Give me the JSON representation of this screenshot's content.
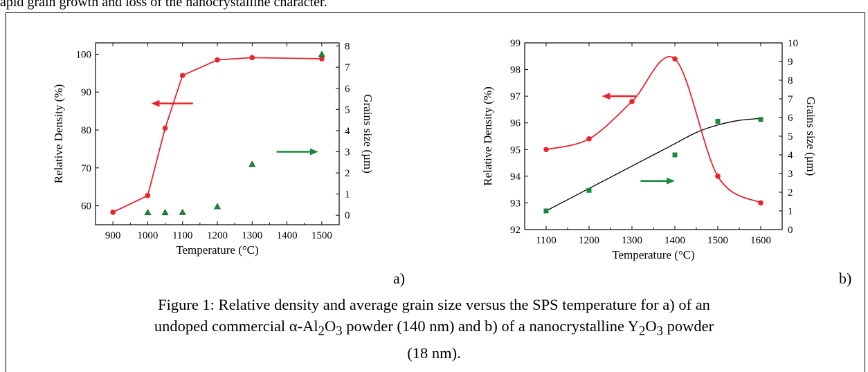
{
  "top_text": "apid grain growth and loss of the nanocrystalline character.",
  "caption": {
    "line1": "Figure 1:  Relative density and average grain size versus the SPS temperature for a) of an",
    "line2_pre": "undoped commercial α-Al",
    "sub2": "2",
    "mid": "O",
    "sub3": "3",
    "line2_mid": " powder (140 nm) and  b) of a nanocrystalline Y",
    "sub2b": "2",
    "midb": "O",
    "sub3b": "3",
    "line2_post": " powder",
    "line3": "(18 nm)."
  },
  "chart_data": [
    {
      "panel_label": "a)",
      "type": "scatter",
      "xlabel": "Temperature (°C)",
      "ylabel": "Relative Density (%)",
      "y2label": "Grains size (µm)",
      "xlim": [
        850,
        1550
      ],
      "ylim": [
        55,
        103
      ],
      "y2lim": [
        -0.45,
        8.15
      ],
      "xticks": [
        900,
        1000,
        1100,
        1200,
        1300,
        1400,
        1500
      ],
      "yticks": [
        60,
        70,
        80,
        90,
        100
      ],
      "y2ticks": [
        0,
        1,
        2,
        3,
        4,
        5,
        6,
        7,
        8
      ],
      "series": [
        {
          "axis": "left",
          "marker": "circle",
          "color": "#e8242c",
          "line": "linear",
          "x": [
            900,
            1000,
            1050,
            1100,
            1200,
            1300,
            1500
          ],
          "values": [
            58.3,
            62.7,
            80.5,
            94.4,
            98.5,
            99.1,
            98.8
          ]
        },
        {
          "axis": "right",
          "marker": "triangle",
          "color": "#1a8a3a",
          "x": [
            1000,
            1050,
            1100,
            1200,
            1300,
            1500
          ],
          "values": [
            0.12,
            0.12,
            0.13,
            0.4,
            2.4,
            7.6
          ]
        }
      ],
      "arrows": [
        {
          "direction": "left",
          "color": "#e8242c",
          "x_from": 1130,
          "x_to": 1010,
          "y": 87,
          "axis": "left"
        },
        {
          "direction": "right",
          "color": "#1a8a3a",
          "x_from": 1370,
          "x_to": 1490,
          "y": 3.0,
          "axis": "right"
        }
      ]
    },
    {
      "panel_label": "b)",
      "type": "scatter",
      "xlabel": "Temperature (°C)",
      "ylabel": "Relative Density (%)",
      "y2label": "Grains size (µm)",
      "xlim": [
        1050,
        1650
      ],
      "ylim": [
        92,
        99
      ],
      "y2lim": [
        0,
        10
      ],
      "xticks": [
        1100,
        1200,
        1300,
        1400,
        1500,
        1600
      ],
      "yticks": [
        92,
        93,
        94,
        95,
        96,
        97,
        98,
        99
      ],
      "y2ticks": [
        0,
        1,
        2,
        3,
        4,
        5,
        6,
        7,
        8,
        9,
        10
      ],
      "series": [
        {
          "axis": "left",
          "marker": "circle",
          "color": "#e8242c",
          "line": "smooth",
          "x": [
            1100,
            1200,
            1300,
            1400,
            1500,
            1600
          ],
          "values": [
            95.0,
            95.4,
            96.8,
            98.4,
            94.0,
            93.0
          ]
        },
        {
          "axis": "right",
          "marker": "square",
          "color": "#1a8a3a",
          "x": [
            1100,
            1200,
            1400,
            1500,
            1600
          ],
          "values": [
            1.0,
            2.1,
            4.0,
            5.8,
            5.9
          ]
        }
      ],
      "fit_line": {
        "axis": "right",
        "color": "#000000",
        "x": [
          1100,
          1150,
          1200,
          1250,
          1300,
          1350,
          1400,
          1450,
          1500,
          1550,
          1600
        ],
        "values": [
          1.0,
          1.6,
          2.2,
          2.8,
          3.4,
          4.0,
          4.6,
          5.2,
          5.6,
          5.85,
          5.95
        ]
      },
      "arrows": [
        {
          "direction": "left",
          "color": "#e8242c",
          "x_from": 1310,
          "x_to": 1230,
          "y": 97.0,
          "axis": "left"
        },
        {
          "direction": "right",
          "color": "#1a8a3a",
          "x_from": 1320,
          "x_to": 1400,
          "y": 2.6,
          "axis": "right"
        }
      ]
    }
  ]
}
